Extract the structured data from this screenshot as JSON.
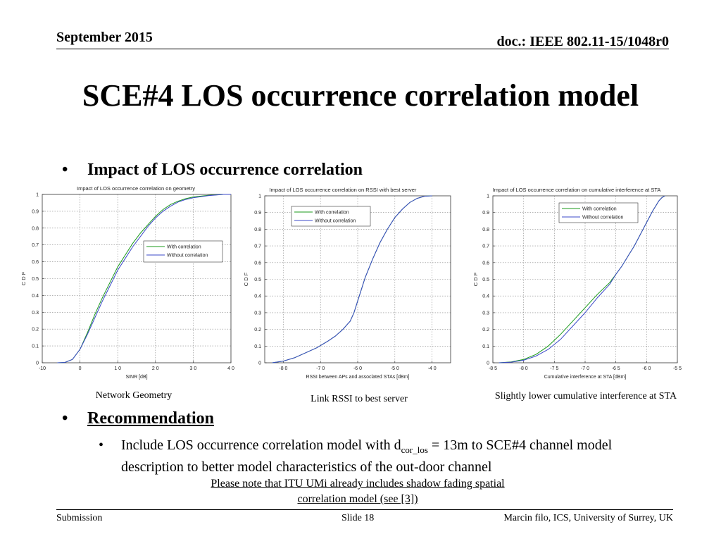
{
  "header": {
    "date": "September 2015",
    "doc": "doc.: IEEE 802.11-15/1048r0"
  },
  "title": "SCE#4 LOS occurrence correlation model",
  "bullets": {
    "impact": "Impact of LOS occurrence correlation",
    "recommendation": "Recommendation",
    "sub_prefix": "Include LOS occurrence correlation model with d",
    "sub_subscript": "cor_los",
    "sub_suffix": " = 13m to SCE#4 channel model description to better model characteristics of the out-door channel"
  },
  "note": {
    "line1": "Please note that ITU UMi already includes shadow fading spatial",
    "line2": "correlation model (see [3])"
  },
  "captions": {
    "chart1": "Network Geometry",
    "chart2": "Link RSSI to best server",
    "chart3": "Slightly lower cumulative interference at STA"
  },
  "footer": {
    "left": "Submission",
    "center": "Slide 18",
    "right": "Marcin filo, ICS, University of Surrey, UK"
  },
  "colors": {
    "with": "#1a9a1a",
    "without": "#3b49c8"
  },
  "chart_data": [
    {
      "type": "line",
      "title": "Impact of LOS occurrence correlation on geometry",
      "xlabel": "SINR [dB]",
      "ylabel": "C D F",
      "xlim": [
        -10,
        40
      ],
      "ylim": [
        0,
        1
      ],
      "xticks": [
        -10,
        0,
        10,
        20,
        30,
        40
      ],
      "xtick_labels": [
        "-10",
        "0",
        "1 0",
        "2 0",
        "3 0",
        "4 0"
      ],
      "yticks": [
        0,
        0.1,
        0.2,
        0.3,
        0.4,
        0.5,
        0.6,
        0.7,
        0.8,
        0.9,
        1
      ],
      "ytick_labels": [
        "0",
        "0.1",
        "0.2",
        "0.3",
        "0.4",
        "0.5",
        "0.6",
        "0.7",
        "0.8",
        "0.9",
        "1"
      ],
      "grid": true,
      "legend": "center-right",
      "series": [
        {
          "name": "With correlation",
          "x": [
            -6,
            -4,
            -2,
            0,
            2,
            4,
            6,
            8,
            10,
            12,
            14,
            16,
            18,
            20,
            22,
            24,
            26,
            28,
            30,
            34,
            38,
            40
          ],
          "y": [
            0,
            0.002,
            0.02,
            0.08,
            0.18,
            0.29,
            0.39,
            0.48,
            0.57,
            0.64,
            0.71,
            0.77,
            0.82,
            0.87,
            0.91,
            0.94,
            0.96,
            0.975,
            0.985,
            0.995,
            1,
            1
          ]
        },
        {
          "name": "Without correlation",
          "x": [
            -6,
            -4,
            -2,
            0,
            2,
            4,
            6,
            8,
            10,
            12,
            14,
            16,
            18,
            20,
            22,
            24,
            26,
            28,
            30,
            34,
            38,
            40
          ],
          "y": [
            0,
            0.002,
            0.02,
            0.08,
            0.17,
            0.27,
            0.37,
            0.46,
            0.55,
            0.62,
            0.69,
            0.75,
            0.81,
            0.86,
            0.9,
            0.93,
            0.955,
            0.97,
            0.98,
            0.993,
            1,
            1
          ]
        }
      ]
    },
    {
      "type": "line",
      "title": "Impact of LOS occurrence correlation on RSSI with best server",
      "xlabel": "RSSI between APs and assoclated STAs [dBm]",
      "ylabel": "C D F",
      "xlim": [
        -85,
        -35
      ],
      "ylim": [
        0,
        1
      ],
      "xticks": [
        -80,
        -70,
        -60,
        -50,
        -40
      ],
      "xtick_labels": [
        "-8 0",
        "-7 0",
        "-6 0",
        "-5 0",
        "-4 0"
      ],
      "yticks": [
        0,
        0.1,
        0.2,
        0.3,
        0.4,
        0.5,
        0.6,
        0.7,
        0.8,
        0.9,
        1
      ],
      "ytick_labels": [
        "0",
        "0.1",
        "0.2",
        "0.3",
        "0.4",
        "0.5",
        "0.6",
        "0.7",
        "0.8",
        "0.9",
        "1"
      ],
      "grid": true,
      "legend": "top-left",
      "series": [
        {
          "name": "With correlation",
          "x": [
            -83,
            -80,
            -77,
            -74,
            -71,
            -68,
            -66,
            -64,
            -62,
            -61,
            -60,
            -59,
            -58,
            -56,
            -54,
            -52,
            -50,
            -48,
            -46,
            -44,
            -42,
            -40
          ],
          "y": [
            0,
            0.01,
            0.03,
            0.06,
            0.09,
            0.13,
            0.16,
            0.2,
            0.25,
            0.3,
            0.37,
            0.44,
            0.51,
            0.62,
            0.72,
            0.8,
            0.87,
            0.92,
            0.96,
            0.985,
            0.998,
            1
          ]
        },
        {
          "name": "Without correlation",
          "x": [
            -83,
            -80,
            -77,
            -74,
            -71,
            -68,
            -66,
            -64,
            -62,
            -61,
            -60,
            -59,
            -58,
            -56,
            -54,
            -52,
            -50,
            -48,
            -46,
            -44,
            -42,
            -40
          ],
          "y": [
            0,
            0.01,
            0.03,
            0.06,
            0.09,
            0.13,
            0.16,
            0.2,
            0.25,
            0.3,
            0.37,
            0.44,
            0.51,
            0.62,
            0.72,
            0.8,
            0.87,
            0.92,
            0.96,
            0.985,
            0.998,
            1
          ]
        }
      ]
    },
    {
      "type": "line",
      "title": "Impact of LOS occurrence correlation on cumulative interference at STA",
      "xlabel": "Cumulative interference at STA [dBm]",
      "ylabel": "C D F",
      "xlim": [
        -85,
        -55
      ],
      "ylim": [
        0,
        1
      ],
      "xticks": [
        -85,
        -80,
        -75,
        -70,
        -65,
        -60,
        -55
      ],
      "xtick_labels": [
        "-8 5",
        "-8 0",
        "-7 5",
        "-7 0",
        "-6 5",
        "-6 0",
        "-5 5"
      ],
      "yticks": [
        0,
        0.1,
        0.2,
        0.3,
        0.4,
        0.5,
        0.6,
        0.7,
        0.8,
        0.9,
        1
      ],
      "ytick_labels": [
        "0",
        "0.1",
        "0.2",
        "0.3",
        "0.4",
        "0.5",
        "0.6",
        "0.7",
        "0.8",
        "0.9",
        "1"
      ],
      "grid": true,
      "legend": "top-right",
      "series": [
        {
          "name": "With correlation",
          "x": [
            -84,
            -82,
            -80,
            -78,
            -76,
            -74,
            -72,
            -70,
            -68,
            -66,
            -65,
            -64,
            -63,
            -62,
            -61,
            -60,
            -59,
            -58,
            -57.5,
            -57
          ],
          "y": [
            0,
            0.005,
            0.02,
            0.05,
            0.1,
            0.17,
            0.25,
            0.33,
            0.41,
            0.48,
            0.53,
            0.58,
            0.64,
            0.7,
            0.77,
            0.84,
            0.91,
            0.97,
            0.99,
            1
          ]
        },
        {
          "name": "Without correlation",
          "x": [
            -84,
            -82,
            -80,
            -78,
            -76,
            -74,
            -72,
            -70,
            -68,
            -66,
            -65,
            -64,
            -63,
            -62,
            -61,
            -60,
            -59,
            -58,
            -57.5,
            -57
          ],
          "y": [
            0,
            0.004,
            0.015,
            0.04,
            0.08,
            0.14,
            0.22,
            0.3,
            0.39,
            0.47,
            0.53,
            0.58,
            0.64,
            0.7,
            0.77,
            0.84,
            0.91,
            0.97,
            0.99,
            1
          ]
        }
      ]
    }
  ]
}
